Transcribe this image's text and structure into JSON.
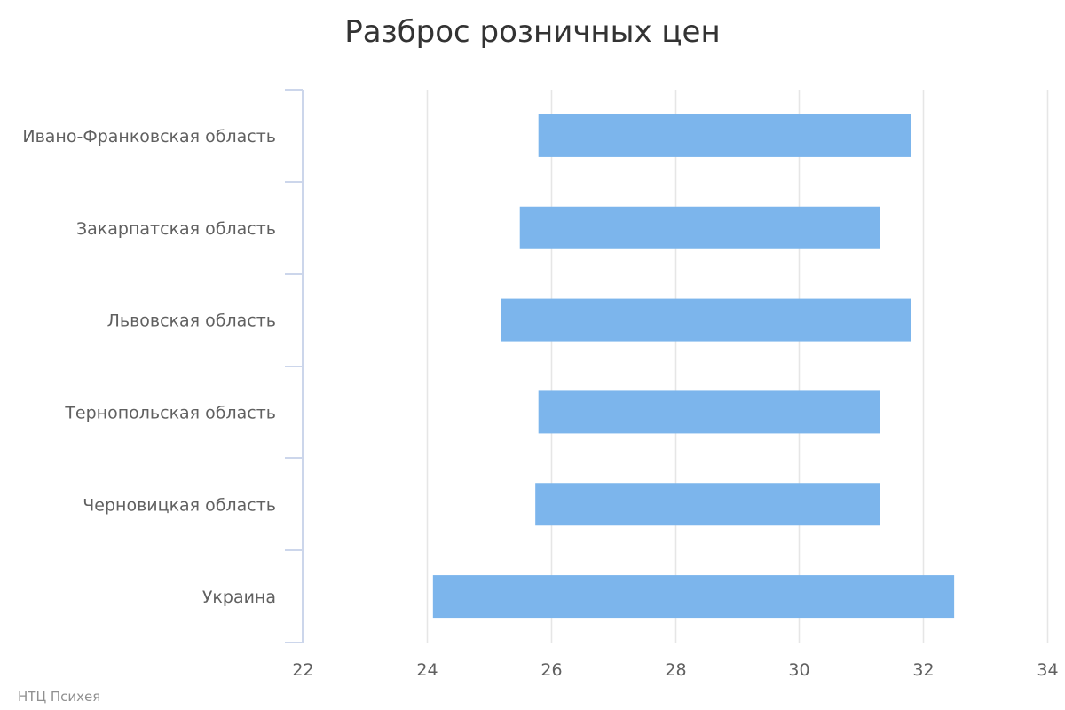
{
  "chart_data": {
    "type": "bar",
    "orientation": "horizontal",
    "variant": "floating-range",
    "title": "Разброс розничных цен",
    "categories": [
      "Ивано-Франковская область",
      "Закарпатская область",
      "Львовская область",
      "Тернопольская область",
      "Черновицкая область",
      "Украина"
    ],
    "series": [
      {
        "low": [
          25.8,
          25.5,
          25.2,
          25.8,
          25.75,
          24.1
        ],
        "high": [
          31.8,
          31.3,
          31.8,
          31.3,
          31.3,
          32.5
        ],
        "color": "#7cb5ec"
      }
    ],
    "xlim": [
      22,
      34
    ],
    "x_ticks": [
      22,
      24,
      26,
      28,
      30,
      32,
      34
    ],
    "x_tick_labels": [
      "22",
      "24",
      "26",
      "28",
      "30",
      "32",
      "34"
    ],
    "xlabel": "",
    "ylabel": "",
    "grid": true,
    "legend": "none",
    "credits": "НТЦ Психея",
    "colors": {
      "bar": "#7cb5ec",
      "grid": "#e6e6e6",
      "axis": "#ccd6eb",
      "text": "#606060",
      "title": "#333333",
      "credits": "#909090"
    }
  }
}
